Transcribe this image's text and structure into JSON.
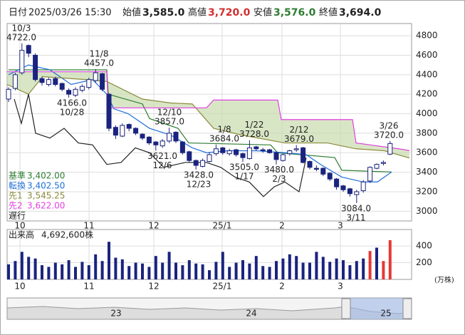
{
  "header": {
    "date_label": "日付",
    "date": "2025/03/26 15:30",
    "open_label": "始値",
    "open": "3,585.0",
    "high_label": "高値",
    "high": "3,720.0",
    "low_label": "安値",
    "low": "3,576.0",
    "close_label": "終値",
    "close": "3,694.0"
  },
  "chart_data": {
    "type": "candlestick",
    "xlim": [
      0,
      568
    ],
    "ylim": [
      2900,
      4925
    ],
    "yticks": [
      3000,
      3200,
      3400,
      3600,
      3800,
      4000,
      4200,
      4400,
      4600,
      4800
    ],
    "xticks": [
      {
        "value": 18,
        "label": "10"
      },
      {
        "value": 115,
        "label": "11"
      },
      {
        "value": 206,
        "label": "12"
      },
      {
        "value": 302,
        "label": "25/1"
      },
      {
        "value": 386,
        "label": "2"
      },
      {
        "value": 468,
        "label": "3"
      }
    ],
    "grid": true,
    "candles": {
      "up_color": "#ffffff",
      "down_color": "#1a237e",
      "edge_color": "#1a237e",
      "x": [
        2,
        11.4,
        20.8,
        30.2,
        39.6,
        49,
        58.4,
        67.8,
        77.2,
        86.6,
        96,
        105.4,
        114.8,
        124.2,
        133.6,
        143,
        152.4,
        161.8,
        171.2,
        180.6,
        190,
        199.4,
        208.8,
        218.2,
        227.6,
        237,
        246.4,
        255.8,
        265.2,
        274.6,
        284,
        293.4,
        302.8,
        312.2,
        321.6,
        331,
        340.4,
        349.8,
        359.2,
        368.6,
        378,
        387.4,
        396.8,
        406.2,
        415.6,
        425,
        434.4,
        443.8,
        453.2,
        462.6,
        472,
        481.4,
        490.8,
        500.2,
        509.6,
        519,
        528.4,
        537.8
      ],
      "open": [
        4150,
        4260,
        4420,
        4700,
        4600,
        4360,
        4300,
        4360,
        4310,
        4240,
        4190,
        4240,
        4270,
        4340,
        4410,
        4200,
        3860,
        3770,
        3890,
        3850,
        3790,
        3760,
        3710,
        3670,
        3720,
        3810,
        3710,
        3610,
        3520,
        3460,
        3510,
        3590,
        3650,
        3590,
        3630,
        3590,
        3540,
        3660,
        3630,
        3630,
        3600,
        3520,
        3590,
        3630,
        3650,
        3510,
        3440,
        3440,
        3390,
        3330,
        3260,
        3230,
        3170,
        3210,
        3310,
        3440,
        3490,
        3585
      ],
      "high": [
        4270,
        4420,
        4722,
        4710,
        4620,
        4380,
        4370,
        4380,
        4320,
        4260,
        4270,
        4300,
        4370,
        4457,
        4420,
        4210,
        3880,
        3900,
        3900,
        3860,
        3800,
        3770,
        3720,
        3740,
        3857,
        3820,
        3720,
        3620,
        3530,
        3540,
        3600,
        3684,
        3660,
        3640,
        3640,
        3600,
        3728,
        3670,
        3650,
        3640,
        3610,
        3590,
        3630,
        3679,
        3660,
        3520,
        3470,
        3450,
        3400,
        3340,
        3270,
        3240,
        3220,
        3320,
        3460,
        3490,
        3520,
        3720
      ],
      "low": [
        4120,
        4240,
        4400,
        4580,
        4330,
        4290,
        4280,
        4280,
        4230,
        4166,
        4170,
        4220,
        4250,
        4320,
        4230,
        3820,
        3740,
        3760,
        3820,
        3780,
        3730,
        3680,
        3621,
        3650,
        3700,
        3700,
        3580,
        3500,
        3428,
        3450,
        3500,
        3570,
        3580,
        3570,
        3560,
        3505,
        3530,
        3620,
        3600,
        3590,
        3480,
        3510,
        3570,
        3610,
        3490,
        3430,
        3410,
        3360,
        3310,
        3220,
        3200,
        3150,
        3084,
        3190,
        3290,
        3430,
        3470,
        3576
      ],
      "close": [
        4250,
        4400,
        4650,
        4620,
        4350,
        4320,
        4350,
        4300,
        4250,
        4200,
        4250,
        4280,
        4350,
        4420,
        4250,
        3850,
        3780,
        3880,
        3850,
        3800,
        3750,
        3700,
        3680,
        3720,
        3800,
        3720,
        3600,
        3520,
        3470,
        3520,
        3580,
        3640,
        3600,
        3620,
        3580,
        3550,
        3650,
        3640,
        3620,
        3600,
        3530,
        3580,
        3620,
        3640,
        3500,
        3450,
        3430,
        3380,
        3330,
        3250,
        3220,
        3180,
        3200,
        3300,
        3450,
        3480,
        3500,
        3694
      ]
    },
    "cloud_color": "#c9dcae",
    "lines": [
      {
        "name": "基準",
        "color": "#2e7d32",
        "latest_label": "3,402.00",
        "x": [
          2,
          140,
          142,
          190,
          200,
          240,
          255,
          370,
          380,
          460,
          470,
          540
        ],
        "values": [
          4450,
          4450,
          4200,
          4100,
          3950,
          3850,
          3700,
          3680,
          3600,
          3550,
          3420,
          3402
        ]
      },
      {
        "name": "転換",
        "color": "#1e6fd9",
        "latest_label": "3,402.50",
        "x": [
          2,
          30,
          60,
          90,
          120,
          140,
          150,
          170,
          200,
          230,
          260,
          280,
          310,
          350,
          390,
          420,
          440,
          470,
          500,
          520,
          540
        ],
        "values": [
          4400,
          4500,
          4450,
          4300,
          4350,
          4200,
          4050,
          4000,
          3850,
          3780,
          3650,
          3600,
          3620,
          3620,
          3600,
          3580,
          3480,
          3350,
          3300,
          3300,
          3402.5
        ]
      },
      {
        "name": "先1",
        "color": "#8a8a3c",
        "latest_label": "3,545.25",
        "x": [
          0,
          30,
          50,
          110,
          140,
          190,
          230,
          260,
          290,
          330,
          390,
          450,
          490,
          530,
          565
        ],
        "values": [
          4300,
          4200,
          4380,
          4350,
          4330,
          4150,
          4110,
          4100,
          3850,
          3780,
          3700,
          3700,
          3640,
          3620,
          3545.25
        ]
      },
      {
        "name": "先2",
        "color": "#e040e0",
        "latest_label": "3,622.00",
        "x": [
          0,
          140,
          142,
          280,
          290,
          380,
          385,
          485,
          490,
          510,
          550,
          565
        ],
        "values": [
          4430,
          4430,
          4060,
          4060,
          4140,
          4140,
          3940,
          3940,
          3700,
          3680,
          3640,
          3622
        ]
      },
      {
        "name": "遅行",
        "color": "#222222",
        "x": [
          10,
          20,
          30,
          40,
          60,
          80,
          100,
          120,
          140,
          160,
          180,
          200,
          220,
          250,
          280,
          300,
          320,
          340,
          360,
          375,
          390,
          410,
          420
        ],
        "values": [
          4150,
          3900,
          4200,
          3800,
          3750,
          3850,
          3700,
          3680,
          3480,
          3500,
          3650,
          3600,
          3450,
          3500,
          3500,
          3450,
          3350,
          3300,
          3150,
          3250,
          3300,
          3200,
          3550
        ]
      }
    ],
    "high_labels": [
      {
        "date": "10/3",
        "value": 4722,
        "label": "4722.0"
      },
      {
        "date": "11/8",
        "value": 4457,
        "label": "4457.0"
      },
      {
        "date": "12/10",
        "value": 3857,
        "label": "3857.0"
      },
      {
        "date": "1/8",
        "value": 3684,
        "label": "3684.0"
      },
      {
        "date": "1/22",
        "value": 3728,
        "label": "3728.0"
      },
      {
        "date": "2/12",
        "value": 3679,
        "label": "3679.0"
      },
      {
        "date": "3/26",
        "value": 3720,
        "label": "3720.0"
      }
    ],
    "low_labels": [
      {
        "date": "10/28",
        "value": 4166,
        "label": "4166.0"
      },
      {
        "date": "12/6",
        "value": 3621,
        "label": "3621.0"
      },
      {
        "date": "12/23",
        "value": 3428,
        "label": "3428.0"
      },
      {
        "date": "1/17",
        "value": 3505,
        "label": "3505.0"
      },
      {
        "date": "2/3",
        "value": 3480,
        "label": "3480.0"
      },
      {
        "date": "3/11",
        "value": 3084,
        "label": "3084.0"
      }
    ],
    "volume": {
      "title": "出来高",
      "latest_label": "4,692,600株",
      "unit": "(万株)",
      "ylim": [
        0,
        580
      ],
      "yticks": [
        200,
        400
      ],
      "values": [
        180,
        220,
        330,
        270,
        250,
        170,
        150,
        200,
        180,
        230,
        150,
        210,
        170,
        300,
        220,
        450,
        260,
        240,
        160,
        200,
        190,
        150,
        280,
        200,
        330,
        200,
        170,
        230,
        190,
        180,
        110,
        210,
        330,
        150,
        200,
        230,
        190,
        280,
        160,
        150,
        220,
        250,
        300,
        280,
        200,
        200,
        330,
        270,
        210,
        250,
        230,
        170,
        220,
        250,
        340,
        380,
        220,
        469.26
      ],
      "colors": [
        "#1a237e",
        "#1a237e",
        "#1a237e",
        "#1a237e",
        "#1a237e",
        "#1a237e",
        "#1a237e",
        "#1a237e",
        "#1a237e",
        "#1a237e",
        "#1a237e",
        "#1a237e",
        "#1a237e",
        "#1a237e",
        "#1a237e",
        "#1a237e",
        "#1a237e",
        "#1a237e",
        "#1a237e",
        "#1a237e",
        "#1a237e",
        "#1a237e",
        "#1a237e",
        "#1a237e",
        "#1a237e",
        "#1a237e",
        "#1a237e",
        "#1a237e",
        "#1a237e",
        "#1a237e",
        "#1a237e",
        "#1a237e",
        "#1a237e",
        "#1a237e",
        "#1a237e",
        "#1a237e",
        "#1a237e",
        "#1a237e",
        "#1a237e",
        "#1a237e",
        "#1a237e",
        "#1a237e",
        "#1a237e",
        "#1a237e",
        "#1a237e",
        "#1a237e",
        "#1a237e",
        "#1a237e",
        "#1a237e",
        "#1a237e",
        "#1a237e",
        "#1a237e",
        "#1a237e",
        "#1a237e",
        "#e53935",
        "#1a237e",
        "#e53935",
        "#e53935"
      ]
    }
  },
  "navigator": {
    "labels": [
      "23",
      "24",
      "25"
    ]
  }
}
